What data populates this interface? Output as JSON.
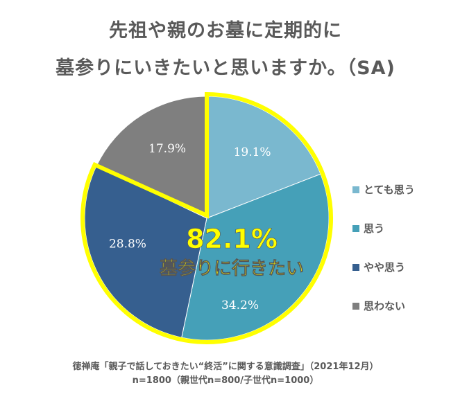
{
  "title_line1": "先祖や親のお墓に定期的に",
  "title_line2": "墓参りにいきたいと思いますか。（SA)",
  "chart_data": {
    "type": "pie",
    "title": "先祖や親のお墓に定期的に墓参りにいきたいと思いますか。（SA)",
    "categories": [
      "とても思う",
      "思う",
      "やや思う",
      "思わない"
    ],
    "values": [
      19.1,
      34.2,
      28.8,
      17.9
    ],
    "labels": [
      "19.1%",
      "34.2%",
      "28.8%",
      "17.9%"
    ],
    "colors": [
      "#7ab8cf",
      "#45a0b8",
      "#365f8f",
      "#7f7f7f"
    ],
    "highlight": {
      "value": "82.1%",
      "text": "墓参りに行きたい",
      "color": "#ffff00",
      "categories": [
        "とても思う",
        "思う",
        "やや思う"
      ]
    },
    "legend_position": "right"
  },
  "source_line1": "徳禅庵「親子で話しておきたい“終活”に関する意識調査」（2021年12月）",
  "source_line2": "n=1800（親世代n=800/子世代n=1000）"
}
